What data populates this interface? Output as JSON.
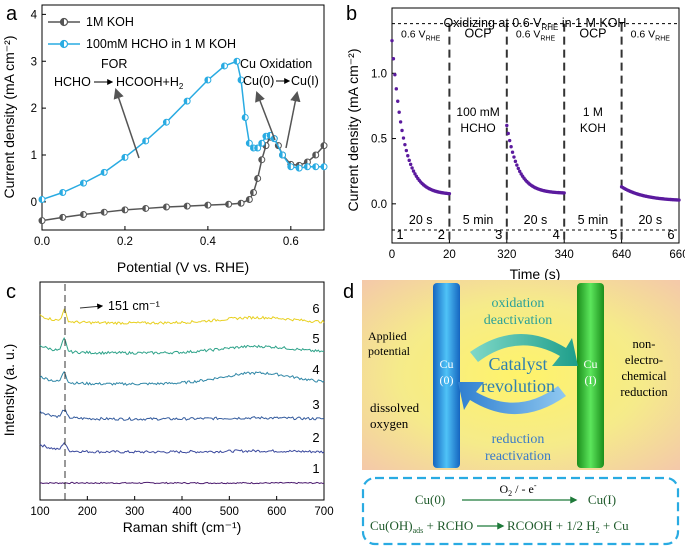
{
  "panel_labels": {
    "a": "a",
    "b": "b",
    "c": "c",
    "d": "d"
  },
  "colors": {
    "cyan": "#29ABE2",
    "gray": "#555555",
    "purple": "#5B1A9E",
    "green_text": "#2AA198",
    "blue_text": "#3A7BC8",
    "dash_box": "#29ABE2"
  },
  "chart_data": [
    {
      "panel": "a",
      "type": "line",
      "xlabel": "Potential (V vs. RHE)",
      "ylabel": "Current density (mA cm⁻²)",
      "xlim": [
        0.0,
        0.68
      ],
      "ylim": [
        -0.6,
        4.2
      ],
      "xticks": [
        0.0,
        0.2,
        0.4,
        0.6
      ],
      "yticks": [
        0,
        1,
        2,
        3,
        4
      ],
      "xtick_labels": [
        "0.0",
        "0.2",
        "0.4",
        "0.6"
      ],
      "ytick_labels": [
        "0",
        "1",
        "2",
        "3",
        "4"
      ],
      "legend": [
        "1M KOH",
        "100mM HCHO in 1 M KOH"
      ],
      "series": [
        {
          "name": "1M KOH",
          "color": "#555555",
          "x": [
            0.0,
            0.05,
            0.1,
            0.15,
            0.2,
            0.25,
            0.3,
            0.35,
            0.4,
            0.45,
            0.48,
            0.5,
            0.51,
            0.52,
            0.53,
            0.54,
            0.55,
            0.56,
            0.57,
            0.58,
            0.6,
            0.62,
            0.64,
            0.66,
            0.68
          ],
          "y": [
            -0.4,
            -0.33,
            -0.27,
            -0.22,
            -0.17,
            -0.14,
            -0.11,
            -0.09,
            -0.07,
            -0.05,
            -0.03,
            0.05,
            0.2,
            0.5,
            0.9,
            1.2,
            1.38,
            1.35,
            1.2,
            1.0,
            0.8,
            0.78,
            0.85,
            1.0,
            1.2
          ]
        },
        {
          "name": "100mM HCHO in 1 M KOH",
          "color": "#29ABE2",
          "x": [
            0.0,
            0.05,
            0.1,
            0.15,
            0.2,
            0.25,
            0.3,
            0.35,
            0.4,
            0.44,
            0.47,
            0.48,
            0.49,
            0.5,
            0.51,
            0.52,
            0.53,
            0.54,
            0.55,
            0.56,
            0.58,
            0.6,
            0.62,
            0.64,
            0.66,
            0.68
          ],
          "y": [
            0.05,
            0.2,
            0.4,
            0.63,
            0.95,
            1.3,
            1.7,
            2.15,
            2.6,
            2.9,
            3.0,
            2.6,
            1.8,
            1.25,
            1.15,
            1.15,
            1.25,
            1.4,
            1.42,
            1.35,
            1.0,
            0.75,
            0.72,
            0.75,
            0.75,
            0.75
          ]
        }
      ],
      "annotations": {
        "for": "FOR",
        "for_eq_left": "HCHO",
        "for_eq_right": "HCOOH+H",
        "for_eq_sub": "2",
        "cu_ox_title": "Cu Oxidation",
        "cu_ox_eq_left": "Cu(0)",
        "cu_ox_eq_right": "Cu(I)"
      }
    },
    {
      "panel": "b",
      "type": "scatter",
      "xlabel": "Time (s)",
      "ylabel": "Current density (mA cm⁻²)",
      "xlim": [
        0,
        660
      ],
      "ylim": [
        -0.3,
        1.5
      ],
      "xticks": [
        0,
        20,
        320,
        340,
        640,
        660
      ],
      "xtick_labels": [
        "0",
        "20",
        "320",
        "340",
        "640",
        "660"
      ],
      "yticks": [
        0.0,
        0.5,
        1.0
      ],
      "ytick_labels": [
        "0.0",
        "0.5",
        "1.0"
      ],
      "title": "Oxidizing at 0.6 V",
      "title_sub": "RHE",
      "title_tail": " in 1 M KOH",
      "plateau": 1.38,
      "baseline": -0.2,
      "segment_labels": [
        {
          "main": "0.6 V",
          "sub": "RHE"
        },
        {
          "main": "OCP",
          "sub": ""
        },
        {
          "main": "0.6 V",
          "sub": "RHE"
        },
        {
          "main": "OCP",
          "sub": ""
        },
        {
          "main": "0.6 V",
          "sub": "RHE"
        }
      ],
      "mid_labels": [
        "100 mM",
        "HCHO",
        "1 M",
        "KOH"
      ],
      "duration_labels": [
        "20 s",
        "5 min",
        "20 s",
        "5 min",
        "20 s"
      ],
      "step_numbers": [
        "1",
        "2",
        "3",
        "4",
        "5",
        "6"
      ],
      "step_colors": [
        "#3B4A9E",
        "#355C9E",
        "#2E86A6",
        "#2FA38A",
        "#6CC04A",
        "#C9B400"
      ],
      "series": [
        {
          "name": "segment 1",
          "t_start": 0,
          "t_end": 20,
          "y_start": 1.25,
          "y_end": 0.07,
          "tau": 4.0
        },
        {
          "name": "segment 2",
          "t_start": 320,
          "t_end": 340,
          "y_start": 0.6,
          "y_end": 0.08,
          "tau": 4.0
        },
        {
          "name": "segment 3",
          "t_start": 640,
          "t_end": 660,
          "y_start": 0.13,
          "y_end": 0.02,
          "tau": 8.0
        }
      ]
    },
    {
      "panel": "c",
      "type": "line",
      "xlabel": "Raman shift (cm⁻¹)",
      "ylabel": "Intensity (a. u.)",
      "xlim": [
        100,
        700
      ],
      "xticks": [
        100,
        200,
        300,
        400,
        500,
        600,
        700
      ],
      "xtick_labels": [
        "100",
        "200",
        "300",
        "400",
        "500",
        "600",
        "700"
      ],
      "peak_label": "151 cm⁻¹",
      "peak_position": 151,
      "series": [
        {
          "name": "1",
          "color": "#4B1A6E",
          "offset": 0.0,
          "peak": 0.0,
          "hump": 0.0
        },
        {
          "name": "2",
          "color": "#3B4A9E",
          "offset": 1.0,
          "peak": 0.35,
          "hump": 0.05
        },
        {
          "name": "3",
          "color": "#355C9E",
          "offset": 2.0,
          "peak": 0.35,
          "hump": 0.05
        },
        {
          "name": "4",
          "color": "#2E86A6",
          "offset": 3.0,
          "peak": 0.5,
          "hump": 0.5
        },
        {
          "name": "5",
          "color": "#2FA38A",
          "offset": 4.0,
          "peak": 0.55,
          "hump": 0.3
        },
        {
          "name": "6",
          "color": "#E8D020",
          "offset": 5.0,
          "peak": 0.5,
          "hump": 0.25
        }
      ]
    }
  ],
  "panel_d": {
    "applied_potential_line1": "Applied",
    "applied_potential_line2": "potential",
    "dissolved_line1": "dissolved",
    "dissolved_line2": "oxygen",
    "non_line1": "non-",
    "non_line2": "electro-",
    "non_line3": "chemical",
    "non_line4": "reduction",
    "cu0_line1": "Cu",
    "cu0_line2": "(0)",
    "cu1_line1": "Cu",
    "cu1_line2": "(I)",
    "oxidation": "oxidation",
    "deactivation": "deactivation",
    "catalyst": "Catalyst",
    "revolution": "revolution",
    "reduction": "reduction",
    "reactivation": "reactivation",
    "eq1_left": "Cu(0)",
    "eq1_over": "O",
    "eq1_over_sub": "2",
    "eq1_over_tail": "  /  - e",
    "eq1_over_sup": "-",
    "eq1_right": "Cu(I)",
    "eq2_left": "Cu(OH)",
    "eq2_left_sub": "ads",
    "eq2_left_tail": " + RCHO",
    "eq2_right": "RCOOH + 1/2 H",
    "eq2_right_sub": "2",
    "eq2_right_tail": " + Cu"
  }
}
